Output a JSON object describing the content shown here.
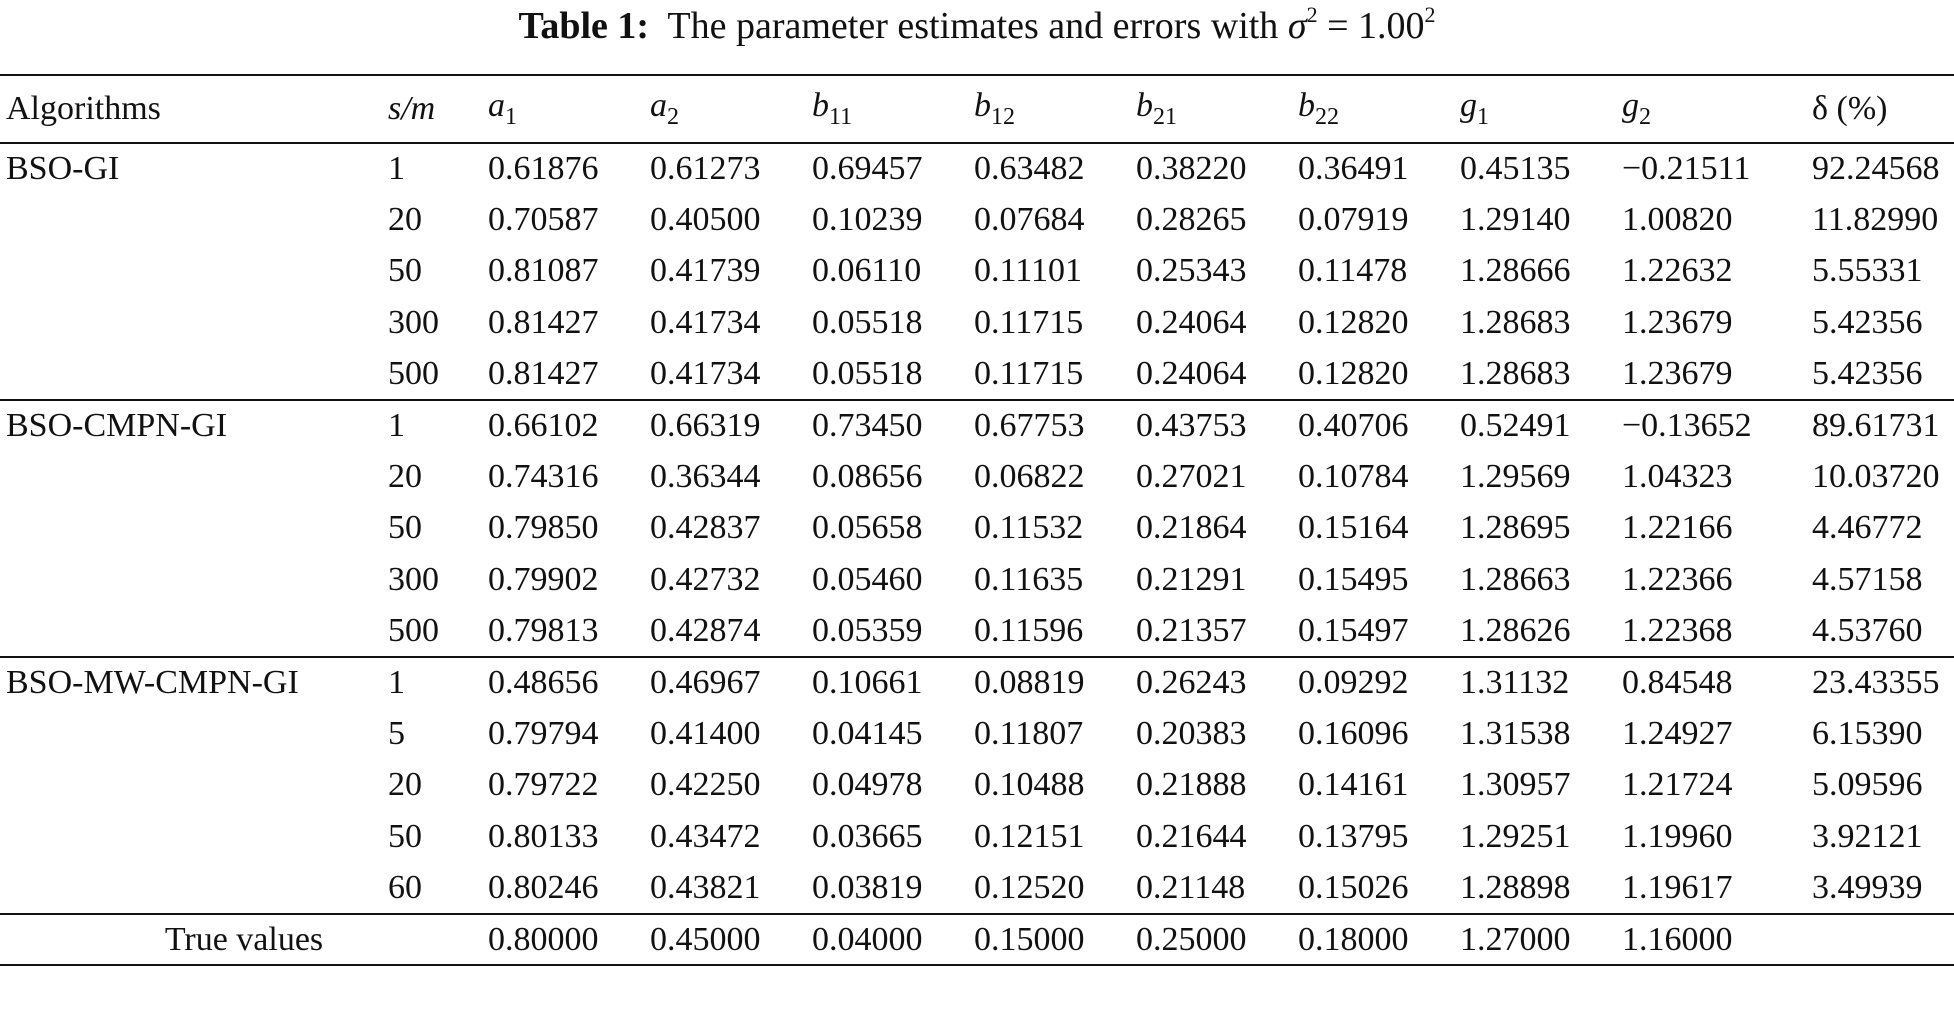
{
  "caption": {
    "label": "Table 1:",
    "text": "The parameter estimates and errors with",
    "sigma": "σ",
    "sigma_exp": "2",
    "equals": "= 1.00",
    "value_exp": "2"
  },
  "header": {
    "algorithms": "Algorithms",
    "sm": "s/m",
    "cols": [
      {
        "base": "a",
        "sub": "1"
      },
      {
        "base": "a",
        "sub": "2"
      },
      {
        "base": "b",
        "sub": "11"
      },
      {
        "base": "b",
        "sub": "12"
      },
      {
        "base": "b",
        "sub": "21"
      },
      {
        "base": "b",
        "sub": "22"
      },
      {
        "base": "g",
        "sub": "1"
      },
      {
        "base": "g",
        "sub": "2"
      }
    ],
    "delta": "δ (%)"
  },
  "groups": [
    {
      "name": "BSO-GI",
      "rows": [
        [
          "1",
          "0.61876",
          "0.61273",
          "0.69457",
          "0.63482",
          "0.38220",
          "0.36491",
          "0.45135",
          "−0.21511",
          "92.24568"
        ],
        [
          "20",
          "0.70587",
          "0.40500",
          "0.10239",
          "0.07684",
          "0.28265",
          "0.07919",
          "1.29140",
          "1.00820",
          "11.82990"
        ],
        [
          "50",
          "0.81087",
          "0.41739",
          "0.06110",
          "0.11101",
          "0.25343",
          "0.11478",
          "1.28666",
          "1.22632",
          "5.55331"
        ],
        [
          "300",
          "0.81427",
          "0.41734",
          "0.05518",
          "0.11715",
          "0.24064",
          "0.12820",
          "1.28683",
          "1.23679",
          "5.42356"
        ],
        [
          "500",
          "0.81427",
          "0.41734",
          "0.05518",
          "0.11715",
          "0.24064",
          "0.12820",
          "1.28683",
          "1.23679",
          "5.42356"
        ]
      ]
    },
    {
      "name": "BSO-CMPN-GI",
      "rows": [
        [
          "1",
          "0.66102",
          "0.66319",
          "0.73450",
          "0.67753",
          "0.43753",
          "0.40706",
          "0.52491",
          "−0.13652",
          "89.61731"
        ],
        [
          "20",
          "0.74316",
          "0.36344",
          "0.08656",
          "0.06822",
          "0.27021",
          "0.10784",
          "1.29569",
          "1.04323",
          "10.03720"
        ],
        [
          "50",
          "0.79850",
          "0.42837",
          "0.05658",
          "0.11532",
          "0.21864",
          "0.15164",
          "1.28695",
          "1.22166",
          "4.46772"
        ],
        [
          "300",
          "0.79902",
          "0.42732",
          "0.05460",
          "0.11635",
          "0.21291",
          "0.15495",
          "1.28663",
          "1.22366",
          "4.57158"
        ],
        [
          "500",
          "0.79813",
          "0.42874",
          "0.05359",
          "0.11596",
          "0.21357",
          "0.15497",
          "1.28626",
          "1.22368",
          "4.53760"
        ]
      ]
    },
    {
      "name": "BSO-MW-CMPN-GI",
      "rows": [
        [
          "1",
          "0.48656",
          "0.46967",
          "0.10661",
          "0.08819",
          "0.26243",
          "0.09292",
          "1.31132",
          "0.84548",
          "23.43355"
        ],
        [
          "5",
          "0.79794",
          "0.41400",
          "0.04145",
          "0.11807",
          "0.20383",
          "0.16096",
          "1.31538",
          "1.24927",
          "6.15390"
        ],
        [
          "20",
          "0.79722",
          "0.42250",
          "0.04978",
          "0.10488",
          "0.21888",
          "0.14161",
          "1.30957",
          "1.21724",
          "5.09596"
        ],
        [
          "50",
          "0.80133",
          "0.43472",
          "0.03665",
          "0.12151",
          "0.21644",
          "0.13795",
          "1.29251",
          "1.19960",
          "3.92121"
        ],
        [
          "60",
          "0.80246",
          "0.43821",
          "0.03819",
          "0.12520",
          "0.21148",
          "0.15026",
          "1.28898",
          "1.19617",
          "3.49939"
        ]
      ]
    }
  ],
  "true_values": {
    "label": "True values",
    "values": [
      "0.80000",
      "0.45000",
      "0.04000",
      "0.15000",
      "0.25000",
      "0.18000",
      "1.27000",
      "1.16000"
    ]
  }
}
